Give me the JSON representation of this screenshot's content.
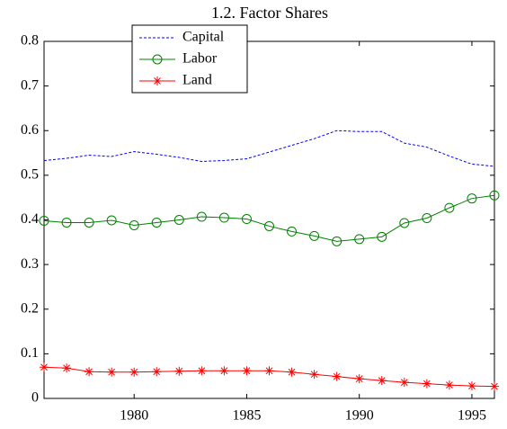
{
  "chart_data": {
    "type": "line",
    "title": "1.2. Factor Shares",
    "x": [
      1976,
      1977,
      1978,
      1979,
      1980,
      1981,
      1982,
      1983,
      1984,
      1985,
      1986,
      1987,
      1988,
      1989,
      1990,
      1991,
      1992,
      1993,
      1994,
      1995,
      1996
    ],
    "series": [
      {
        "name": "Capital",
        "color": "#0000ff",
        "style": "dashed",
        "marker": "none",
        "values": [
          0.533,
          0.538,
          0.545,
          0.542,
          0.553,
          0.547,
          0.54,
          0.531,
          0.533,
          0.537,
          0.552,
          0.567,
          0.582,
          0.6,
          0.598,
          0.598,
          0.572,
          0.563,
          0.543,
          0.525,
          0.52
        ]
      },
      {
        "name": "Labor",
        "color": "#008000",
        "style": "solid",
        "marker": "circle",
        "values": [
          0.398,
          0.394,
          0.394,
          0.399,
          0.388,
          0.394,
          0.4,
          0.407,
          0.405,
          0.402,
          0.386,
          0.374,
          0.364,
          0.352,
          0.357,
          0.362,
          0.393,
          0.404,
          0.427,
          0.448,
          0.455
        ]
      },
      {
        "name": "Land",
        "color": "#ff0000",
        "style": "solid",
        "marker": "star",
        "values": [
          0.07,
          0.068,
          0.06,
          0.059,
          0.059,
          0.06,
          0.061,
          0.062,
          0.062,
          0.062,
          0.062,
          0.059,
          0.054,
          0.049,
          0.044,
          0.04,
          0.036,
          0.033,
          0.03,
          0.028,
          0.027
        ]
      }
    ],
    "xlim": [
      1976,
      1996
    ],
    "xticks": [
      1980,
      1985,
      1990,
      1995
    ],
    "ylim": [
      0,
      0.8
    ],
    "yticks": [
      0,
      0.1,
      0.2,
      0.3,
      0.4,
      0.5,
      0.6,
      0.7,
      0.8
    ],
    "grid": false,
    "legend": "top-left"
  }
}
